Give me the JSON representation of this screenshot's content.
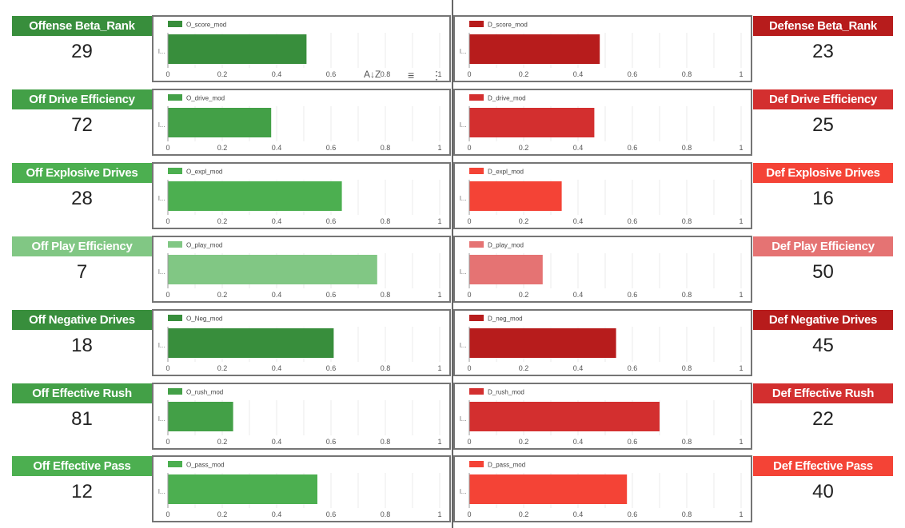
{
  "toolbar": {
    "sort_icon_label": "A↓Z",
    "filter_icon_label": "≡",
    "more_icon_label": "⋮"
  },
  "chart_data": [
    {
      "type": "bar",
      "orientation": "horizontal",
      "title": "Offense Beta_Rank",
      "kpi": "29",
      "series": [
        {
          "name": "O_score_mod",
          "values": [
            0.51
          ]
        }
      ],
      "categories": [
        "l..."
      ],
      "xlim": [
        0,
        1
      ],
      "xticks": [
        "0",
        "0.2",
        "0.4",
        "0.6",
        "0.8",
        "1"
      ],
      "color": "#388e3c",
      "side": "offense"
    },
    {
      "type": "bar",
      "orientation": "horizontal",
      "title": "Defense Beta_Rank",
      "kpi": "23",
      "series": [
        {
          "name": "D_score_mod",
          "values": [
            0.48
          ]
        }
      ],
      "categories": [
        "l..."
      ],
      "xlim": [
        0,
        1
      ],
      "xticks": [
        "0",
        "0.2",
        "0.4",
        "0.6",
        "0.8",
        "1"
      ],
      "color": "#b71c1c",
      "side": "defense"
    },
    {
      "type": "bar",
      "orientation": "horizontal",
      "title": "Off Drive Efficiency",
      "kpi": "72",
      "series": [
        {
          "name": "O_drive_mod",
          "values": [
            0.38
          ]
        }
      ],
      "categories": [
        "l..."
      ],
      "xlim": [
        0,
        1
      ],
      "xticks": [
        "0",
        "0.2",
        "0.4",
        "0.6",
        "0.8",
        "1"
      ],
      "color": "#43a047",
      "side": "offense"
    },
    {
      "type": "bar",
      "orientation": "horizontal",
      "title": "Def Drive Efficiency",
      "kpi": "25",
      "series": [
        {
          "name": "D_drive_mod",
          "values": [
            0.46
          ]
        }
      ],
      "categories": [
        "l..."
      ],
      "xlim": [
        0,
        1
      ],
      "xticks": [
        "0",
        "0.2",
        "0.4",
        "0.6",
        "0.8",
        "1"
      ],
      "color": "#d32f2f",
      "side": "defense"
    },
    {
      "type": "bar",
      "orientation": "horizontal",
      "title": "Off Explosive Drives",
      "kpi": "28",
      "series": [
        {
          "name": "O_expl_mod",
          "values": [
            0.64
          ]
        }
      ],
      "categories": [
        "l..."
      ],
      "xlim": [
        0,
        1
      ],
      "xticks": [
        "0",
        "0.2",
        "0.4",
        "0.6",
        "0.8",
        "1"
      ],
      "color": "#4caf50",
      "side": "offense"
    },
    {
      "type": "bar",
      "orientation": "horizontal",
      "title": "Def Explosive Drives",
      "kpi": "16",
      "series": [
        {
          "name": "D_expl_mod",
          "values": [
            0.34
          ]
        }
      ],
      "categories": [
        "l..."
      ],
      "xlim": [
        0,
        1
      ],
      "xticks": [
        "0",
        "0.2",
        "0.4",
        "0.6",
        "0.8",
        "1"
      ],
      "color": "#f44336",
      "side": "defense"
    },
    {
      "type": "bar",
      "orientation": "horizontal",
      "title": "Off Play Efficiency",
      "kpi": "7",
      "series": [
        {
          "name": "O_play_mod",
          "values": [
            0.77
          ]
        }
      ],
      "categories": [
        "l..."
      ],
      "xlim": [
        0,
        1
      ],
      "xticks": [
        "0",
        "0.2",
        "0.4",
        "0.6",
        "0.8",
        "1"
      ],
      "color": "#81c784",
      "side": "offense"
    },
    {
      "type": "bar",
      "orientation": "horizontal",
      "title": "Def Play Efficiency",
      "kpi": "50",
      "series": [
        {
          "name": "D_play_mod",
          "values": [
            0.27
          ]
        }
      ],
      "categories": [
        "l..."
      ],
      "xlim": [
        0,
        1
      ],
      "xticks": [
        "0",
        "0.2",
        "0.4",
        "0.6",
        "0.8",
        "1"
      ],
      "color": "#e57373",
      "side": "defense"
    },
    {
      "type": "bar",
      "orientation": "horizontal",
      "title": "Off Negative Drives",
      "kpi": "18",
      "series": [
        {
          "name": "O_Neg_mod",
          "values": [
            0.61
          ]
        }
      ],
      "categories": [
        "l..."
      ],
      "xlim": [
        0,
        1
      ],
      "xticks": [
        "0",
        "0.2",
        "0.4",
        "0.6",
        "0.8",
        "1"
      ],
      "color": "#388e3c",
      "side": "offense"
    },
    {
      "type": "bar",
      "orientation": "horizontal",
      "title": "Def Negative Drives",
      "kpi": "45",
      "series": [
        {
          "name": "D_neg_mod",
          "values": [
            0.54
          ]
        }
      ],
      "categories": [
        "l..."
      ],
      "xlim": [
        0,
        1
      ],
      "xticks": [
        "0",
        "0.2",
        "0.4",
        "0.6",
        "0.8",
        "1"
      ],
      "color": "#b71c1c",
      "side": "defense"
    },
    {
      "type": "bar",
      "orientation": "horizontal",
      "title": "Off Effective Rush",
      "kpi": "81",
      "series": [
        {
          "name": "O_rush_mod",
          "values": [
            0.24
          ]
        }
      ],
      "categories": [
        "l..."
      ],
      "xlim": [
        0,
        1
      ],
      "xticks": [
        "0",
        "0.2",
        "0.4",
        "0.6",
        "0.8",
        "1"
      ],
      "color": "#43a047",
      "side": "offense"
    },
    {
      "type": "bar",
      "orientation": "horizontal",
      "title": "Def Effective Rush",
      "kpi": "22",
      "series": [
        {
          "name": "D_rush_mod",
          "values": [
            0.7
          ]
        }
      ],
      "categories": [
        "l..."
      ],
      "xlim": [
        0,
        1
      ],
      "xticks": [
        "0",
        "0.2",
        "0.4",
        "0.6",
        "0.8",
        "1"
      ],
      "color": "#d32f2f",
      "side": "defense"
    },
    {
      "type": "bar",
      "orientation": "horizontal",
      "title": "Off Effective Pass",
      "kpi": "12",
      "series": [
        {
          "name": "O_pass_mod",
          "values": [
            0.55
          ]
        }
      ],
      "categories": [
        "l..."
      ],
      "xlim": [
        0,
        1
      ],
      "xticks": [
        "0",
        "0.2",
        "0.4",
        "0.6",
        "0.8",
        "1"
      ],
      "color": "#4caf50",
      "side": "offense"
    },
    {
      "type": "bar",
      "orientation": "horizontal",
      "title": "Def Effective Pass",
      "kpi": "40",
      "series": [
        {
          "name": "D_pass_mod",
          "values": [
            0.58
          ]
        }
      ],
      "categories": [
        "l..."
      ],
      "xlim": [
        0,
        1
      ],
      "xticks": [
        "0",
        "0.2",
        "0.4",
        "0.6",
        "0.8",
        "1"
      ],
      "color": "#f44336",
      "side": "defense"
    }
  ]
}
